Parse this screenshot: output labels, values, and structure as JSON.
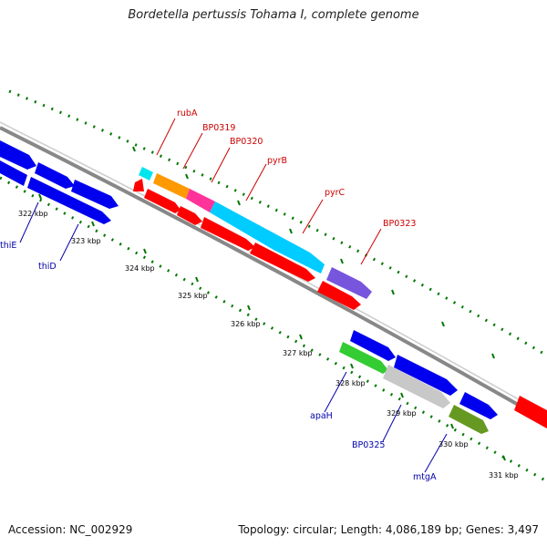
{
  "title": "Bordetella pertussis Tohama I, complete genome",
  "footer": {
    "accession": "Accession: NC_002929",
    "topology": "Topology: circular; Length: 4,086,189 bp; Genes: 3,497"
  },
  "colors": {
    "red": "#ff0000",
    "blue": "#0000ee",
    "cyan": "#00ccff",
    "orange": "#ff9900",
    "magenta": "#ff3399",
    "purple": "#7755dd",
    "green": "#33cc33",
    "gray": "#cccccc",
    "olive": "#669922",
    "backbone": "#888888",
    "tick": "#007700",
    "gene_label_top": "#cc0000",
    "gene_label_bottom": "#0000aa"
  },
  "ruler": [
    "322 kbp",
    "323 kbp",
    "324 kbp",
    "325 kbp",
    "326 kbp",
    "327 kbp",
    "328 kbp",
    "329 kbp",
    "330 kbp",
    "331 kbp"
  ],
  "gene_labels_top": [
    "rubA",
    "BP0319",
    "BP0320",
    "pyrB",
    "pyrC",
    "BP0323"
  ],
  "gene_labels_bottom": [
    "thiE",
    "thiD",
    "apaH",
    "BP0325",
    "mtgA"
  ]
}
